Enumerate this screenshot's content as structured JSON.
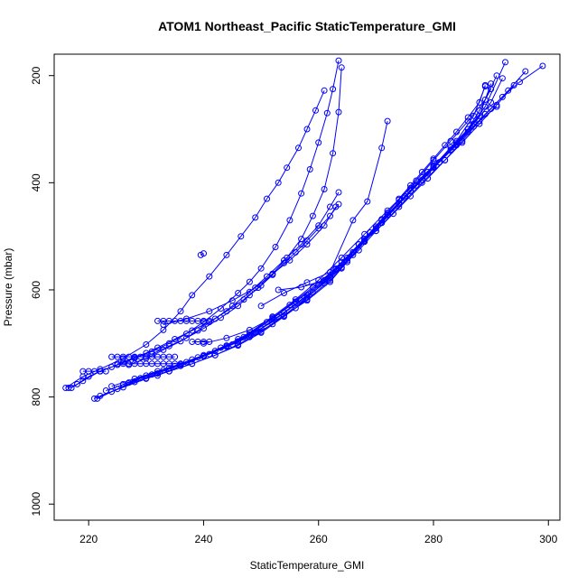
{
  "chart_data": {
    "type": "line",
    "title": "ATOM1 Northeast_Pacific StaticTemperature_GMI",
    "xlabel": "StaticTemperature_GMI",
    "ylabel": "Pressure (mbar)",
    "xlim": [
      214,
      302
    ],
    "ylim": [
      1030,
      160
    ],
    "y_reversed": true,
    "x_ticks": [
      220,
      240,
      260,
      280,
      300
    ],
    "y_ticks": [
      200,
      400,
      600,
      800,
      1000
    ],
    "grid": false,
    "color": "#0000ff",
    "marker": "open-circle",
    "series": [
      {
        "x": [
          216.5,
          218,
          220,
          222,
          224,
          226,
          228,
          230,
          232,
          235,
          238,
          241,
          244,
          247,
          249.5,
          252,
          254.5,
          257,
          259,
          261,
          262.5,
          263.5,
          264
        ],
        "y": [
          783,
          776,
          762,
          752,
          744,
          735,
          726,
          718,
          708,
          692,
          676,
          660,
          640,
          618,
          596,
          570,
          540,
          505,
          462,
          412,
          345,
          268,
          185
        ]
      },
      {
        "x": [
          217,
          219,
          222,
          225,
          228,
          231,
          234,
          237,
          240,
          243,
          246,
          248,
          250,
          252.5,
          255,
          257,
          258.5,
          260,
          261.5,
          262.5,
          263.5
        ],
        "y": [
          783,
          770,
          752,
          740,
          728,
          715,
          700,
          682,
          660,
          635,
          606,
          585,
          560,
          520,
          470,
          420,
          375,
          325,
          270,
          225,
          172
        ]
      },
      {
        "x": [
          216,
          219,
          222,
          226,
          230,
          233,
          236,
          238,
          241,
          244,
          246.5,
          249,
          251,
          253,
          254.5,
          256.5,
          258,
          259.5,
          261
        ],
        "y": [
          783,
          762,
          748,
          728,
          702,
          675,
          640,
          610,
          575,
          535,
          500,
          465,
          430,
          400,
          372,
          335,
          300,
          265,
          228
        ]
      },
      {
        "x": [
          221,
          224,
          228,
          232,
          236,
          240,
          244,
          248,
          252,
          256,
          260,
          263,
          266,
          269,
          272,
          275,
          278,
          281,
          284,
          287,
          290,
          293,
          296
        ],
        "y": [
          803,
          790,
          772,
          756,
          740,
          724,
          706,
          683,
          654,
          622,
          590,
          562,
          530,
          493,
          460,
          428,
          395,
          362,
          330,
          295,
          262,
          228,
          192
        ]
      },
      {
        "x": [
          221.5,
          225,
          229,
          233,
          237,
          241,
          245,
          249,
          253,
          257,
          261,
          264,
          267,
          270,
          273,
          276,
          279,
          282,
          285,
          288,
          291,
          294
        ],
        "y": [
          803,
          785,
          765,
          750,
          735,
          720,
          702,
          680,
          651,
          620,
          588,
          558,
          526,
          490,
          458,
          425,
          392,
          358,
          325,
          290,
          255,
          218
        ]
      },
      {
        "x": [
          222,
          226,
          230,
          234,
          238,
          242,
          246,
          250,
          254,
          258,
          262,
          265,
          268,
          271,
          274,
          277,
          280,
          283,
          286,
          288,
          290
        ],
        "y": [
          798,
          782,
          766,
          752,
          738,
          722,
          704,
          680,
          650,
          618,
          582,
          548,
          510,
          475,
          440,
          405,
          370,
          334,
          300,
          265,
          225
        ]
      },
      {
        "x": [
          230,
          234,
          238,
          242,
          246,
          250,
          254,
          258,
          262,
          265,
          268,
          271,
          274,
          277,
          280,
          283,
          286,
          289,
          292,
          295,
          299
        ],
        "y": [
          765,
          752,
          738,
          722,
          702,
          678,
          648,
          614,
          578,
          545,
          510,
          475,
          440,
          405,
          372,
          340,
          305,
          272,
          240,
          212,
          182
        ]
      },
      {
        "x": [
          224,
          228,
          232,
          236,
          240,
          244,
          248,
          252,
          256,
          259,
          262,
          265,
          268,
          271,
          274,
          277,
          280,
          283,
          286,
          289,
          291
        ],
        "y": [
          780,
          766,
          752,
          738,
          722,
          706,
          688,
          664,
          634,
          605,
          575,
          540,
          505,
          468,
          432,
          396,
          358,
          322,
          285,
          245,
          200
        ]
      },
      {
        "x": [
          226,
          230,
          234,
          238,
          242,
          246,
          250,
          254,
          258,
          262,
          266,
          270,
          274,
          278,
          281,
          284,
          287,
          290,
          292
        ],
        "y": [
          776,
          760,
          746,
          730,
          714,
          696,
          672,
          642,
          610,
          575,
          530,
          485,
          438,
          395,
          362,
          328,
          290,
          250,
          205
        ]
      },
      {
        "x": [
          223,
          227,
          231,
          235,
          239,
          243,
          247,
          251,
          255,
          259,
          263,
          267,
          271,
          275,
          279,
          283,
          286,
          289,
          292.5
        ],
        "y": [
          788,
          773,
          758,
          742,
          726,
          708,
          688,
          660,
          628,
          595,
          560,
          515,
          470,
          425,
          380,
          338,
          300,
          258,
          175
        ]
      },
      {
        "x": [
          232,
          236,
          240,
          244,
          248,
          252,
          256,
          260,
          264,
          268,
          272,
          276,
          280,
          284,
          288,
          290
        ],
        "y": [
          760,
          742,
          724,
          704,
          680,
          650,
          618,
          582,
          540,
          496,
          452,
          410,
          368,
          325,
          275,
          215
        ]
      },
      {
        "x": [
          240,
          244,
          248,
          252,
          256,
          260,
          264,
          268,
          272,
          276,
          280,
          284,
          287,
          289
        ],
        "y": [
          700,
          690,
          675,
          652,
          622,
          590,
          548,
          505,
          460,
          415,
          370,
          322,
          275,
          220
        ]
      },
      {
        "x": [
          246,
          250,
          254,
          258,
          262,
          264,
          266,
          268,
          270,
          272,
          274,
          276,
          278,
          280,
          282,
          284,
          286,
          288,
          289
        ],
        "y": [
          692,
          672,
          648,
          620,
          585,
          560,
          535,
          508,
          482,
          456,
          430,
          405,
          380,
          355,
          330,
          305,
          278,
          250,
          218
        ]
      },
      {
        "x": [
          250,
          254,
          258,
          262,
          266,
          268.5,
          271,
          272
        ],
        "y": [
          630,
          606,
          586,
          567,
          470,
          435,
          335,
          285
        ]
      },
      {
        "x": [
          253,
          257,
          261,
          264,
          267,
          270,
          274,
          278,
          282,
          285,
          288,
          291
        ],
        "y": [
          600,
          595,
          582,
          558,
          515,
          490,
          445,
          400,
          358,
          322,
          285,
          258
        ]
      },
      {
        "x": [
          231,
          234,
          237,
          240,
          243,
          246,
          248,
          250,
          252,
          254,
          256,
          258,
          260,
          262,
          263.5
        ],
        "y": [
          720,
          705,
          690,
          672,
          652,
          630,
          610,
          592,
          572,
          550,
          530,
          508,
          485,
          462,
          440
        ]
      },
      {
        "x": [
          233,
          237,
          241,
          245,
          249,
          252,
          255,
          258,
          261,
          263
        ],
        "y": [
          665,
          654,
          640,
          620,
          596,
          570,
          545,
          515,
          480,
          445
        ]
      },
      {
        "x": [
          227,
          230,
          233,
          236,
          239,
          242,
          245,
          248,
          251,
          254,
          257,
          260,
          262,
          263.5
        ],
        "y": [
          740,
          728,
          712,
          696,
          676,
          654,
          630,
          604,
          575,
          545,
          515,
          480,
          445,
          418
        ]
      },
      {
        "x": [
          239.5,
          240
        ],
        "y": [
          535,
          532
        ]
      },
      {
        "x": [
          232,
          233,
          234,
          235,
          236,
          237,
          238,
          239,
          240,
          241
        ],
        "y": [
          658,
          658,
          658,
          658,
          658,
          658,
          658,
          658,
          658,
          658
        ]
      },
      {
        "x": [
          224,
          225,
          226,
          227,
          228,
          229,
          230,
          231,
          232,
          233,
          234,
          235
        ],
        "y": [
          725,
          725,
          725,
          725,
          725,
          725,
          725,
          725,
          725,
          725,
          725,
          725
        ]
      },
      {
        "x": [
          225,
          226,
          227,
          228,
          229,
          230,
          231,
          232,
          233,
          234,
          235,
          236
        ],
        "y": [
          738,
          738,
          738,
          738,
          738,
          738,
          738,
          738,
          738,
          738,
          738,
          738
        ]
      },
      {
        "x": [
          219,
          220,
          221,
          222,
          223
        ],
        "y": [
          752,
          752,
          752,
          752,
          752
        ]
      },
      {
        "x": [
          238,
          239,
          240,
          241
        ],
        "y": [
          697,
          697,
          697,
          697
        ]
      }
    ]
  }
}
